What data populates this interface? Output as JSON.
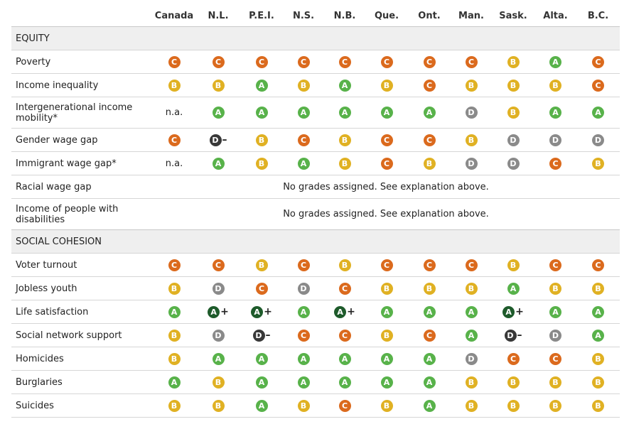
{
  "grade_colors": {
    "A+": "#1e5b2b",
    "A": "#58b24a",
    "B": "#e0b123",
    "C": "#db6a1d",
    "D": "#8a8a8a",
    "D-": "#383838"
  },
  "columns": [
    "Canada",
    "N.L.",
    "P.E.I.",
    "N.S.",
    "N.B.",
    "Que.",
    "Ont.",
    "Man.",
    "Sask.",
    "Alta.",
    "B.C."
  ],
  "sections": [
    {
      "title": "EQUITY",
      "rows": [
        {
          "label": "Poverty",
          "grades": [
            "C",
            "C",
            "C",
            "C",
            "C",
            "C",
            "C",
            "C",
            "B",
            "A",
            "C"
          ]
        },
        {
          "label": "Income inequality",
          "grades": [
            "B",
            "B",
            "A",
            "B",
            "A",
            "B",
            "C",
            "B",
            "B",
            "B",
            "C"
          ]
        },
        {
          "label": "Intergenerational income mobility*",
          "grades": [
            "n.a.",
            "A",
            "A",
            "A",
            "A",
            "A",
            "A",
            "D",
            "B",
            "A",
            "A"
          ]
        },
        {
          "label": "Gender wage gap",
          "grades": [
            "C",
            "D-",
            "B",
            "C",
            "B",
            "C",
            "C",
            "B",
            "D",
            "D",
            "D"
          ]
        },
        {
          "label": "Immigrant wage gap*",
          "grades": [
            "n.a.",
            "A",
            "B",
            "A",
            "B",
            "C",
            "B",
            "D",
            "D",
            "C",
            "B"
          ]
        },
        {
          "label": "Racial wage gap",
          "note": "No grades assigned. See explanation above."
        },
        {
          "label": "Income of people with disabilities",
          "note": "No grades assigned. See explanation above."
        }
      ]
    },
    {
      "title": "SOCIAL COHESION",
      "rows": [
        {
          "label": "Voter turnout",
          "grades": [
            "C",
            "C",
            "B",
            "C",
            "B",
            "C",
            "C",
            "C",
            "B",
            "C",
            "C"
          ]
        },
        {
          "label": "Jobless youth",
          "grades": [
            "B",
            "D",
            "C",
            "D",
            "C",
            "B",
            "B",
            "B",
            "A",
            "B",
            "B"
          ]
        },
        {
          "label": "Life satisfaction",
          "grades": [
            "A",
            "A+",
            "A+",
            "A",
            "A+",
            "A",
            "A",
            "A",
            "A+",
            "A",
            "A"
          ]
        },
        {
          "label": "Social network support",
          "grades": [
            "B",
            "D",
            "D-",
            "C",
            "C",
            "B",
            "C",
            "A",
            "D-",
            "D",
            "A"
          ]
        },
        {
          "label": "Homicides",
          "grades": [
            "B",
            "A",
            "A",
            "A",
            "A",
            "A",
            "A",
            "D",
            "C",
            "C",
            "B"
          ]
        },
        {
          "label": "Burglaries",
          "grades": [
            "A",
            "B",
            "A",
            "A",
            "A",
            "A",
            "A",
            "B",
            "B",
            "B",
            "B"
          ]
        },
        {
          "label": "Suicides",
          "grades": [
            "B",
            "B",
            "A",
            "B",
            "C",
            "B",
            "A",
            "B",
            "B",
            "B",
            "B"
          ]
        }
      ]
    }
  ]
}
